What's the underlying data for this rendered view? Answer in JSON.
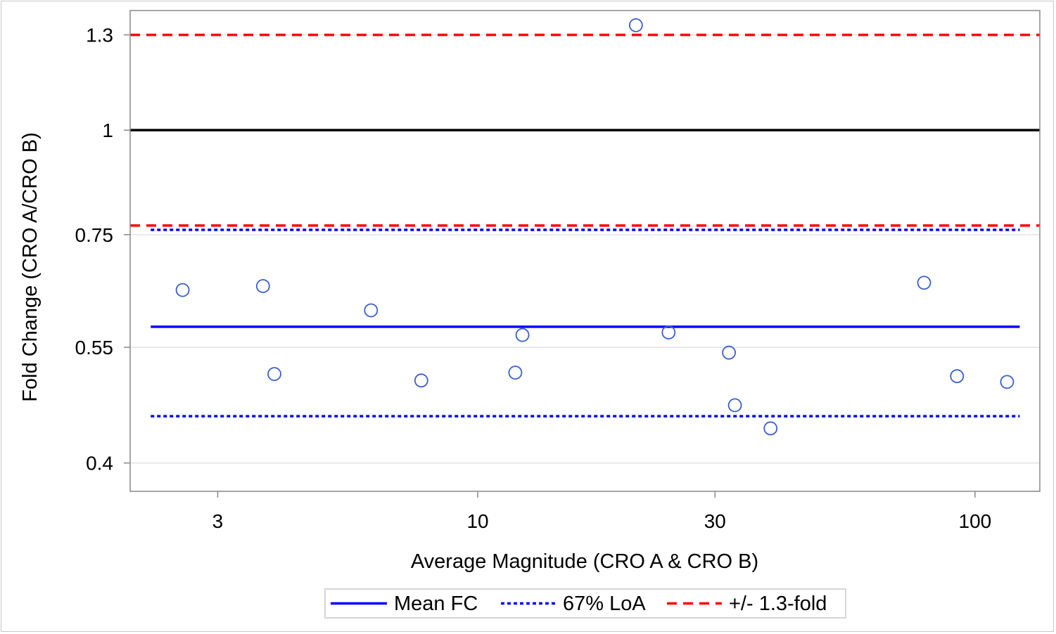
{
  "chart_data": {
    "type": "scatter",
    "xlabel": "Average Magnitude (CRO A & CRO B)",
    "ylabel": "Fold Change (CRO A/CRO B)",
    "x_scale": "log",
    "y_scale": "log",
    "xlim": [
      2.0,
      135
    ],
    "ylim": [
      0.37,
      1.39
    ],
    "x_ticks": [
      {
        "value": 3,
        "label": "3"
      },
      {
        "value": 10,
        "label": "10"
      },
      {
        "value": 30,
        "label": "30"
      },
      {
        "value": 100,
        "label": "100"
      }
    ],
    "y_ticks": [
      {
        "value": 0.4,
        "label": "0.4"
      },
      {
        "value": 0.55,
        "label": "0.55"
      },
      {
        "value": 0.75,
        "label": "0.75"
      },
      {
        "value": 1,
        "label": "1"
      },
      {
        "value": 1.3,
        "label": "1.3"
      }
    ],
    "grid": "horizontal",
    "points": {
      "x": [
        2.55,
        3.7,
        3.9,
        6.1,
        7.7,
        11.9,
        12.3,
        20.8,
        24.2,
        32.0,
        32.9,
        38.8,
        79.0,
        92.0,
        116.0
      ],
      "y": [
        0.644,
        0.651,
        0.511,
        0.609,
        0.502,
        0.513,
        0.569,
        1.335,
        0.573,
        0.542,
        0.469,
        0.44,
        0.657,
        0.508,
        0.5
      ]
    },
    "reference_lines": [
      {
        "name": "Mean FC",
        "y": 0.582,
        "x_range": [
          2.2,
          123
        ],
        "color": "#0000ff",
        "style": "solid"
      },
      {
        "name": "67% LoA",
        "y": 0.76,
        "x_range": [
          2.2,
          123
        ],
        "color": "#0000ff",
        "style": "dotted"
      },
      {
        "name": "67% LoA",
        "y": 0.455,
        "x_range": [
          2.2,
          123
        ],
        "color": "#0000ff",
        "style": "dotted"
      },
      {
        "name": "+/- 1.3-fold",
        "y": 1.3,
        "x_range": [
          2.0,
          135
        ],
        "color": "#ff0000",
        "style": "dashed"
      },
      {
        "name": "+/- 1.3-fold",
        "y": 0.769,
        "x_range": [
          2.0,
          135
        ],
        "color": "#ff0000",
        "style": "dashed"
      },
      {
        "name": "",
        "y": 1,
        "x_range": [
          2.0,
          135
        ],
        "color": "#000000",
        "style": "solid"
      }
    ],
    "legend": {
      "position": "bottom",
      "entries": [
        {
          "label": "Mean FC",
          "color": "#0000ff",
          "style": "solid"
        },
        {
          "label": "67% LoA",
          "color": "#0000ff",
          "style": "dotted"
        },
        {
          "label": "+/- 1.3-fold",
          "color": "#ff0000",
          "style": "dashed"
        }
      ]
    },
    "colors": {
      "marker": "#3a5fcd",
      "axis": "#888888",
      "grid": "#e3e3e3"
    }
  }
}
